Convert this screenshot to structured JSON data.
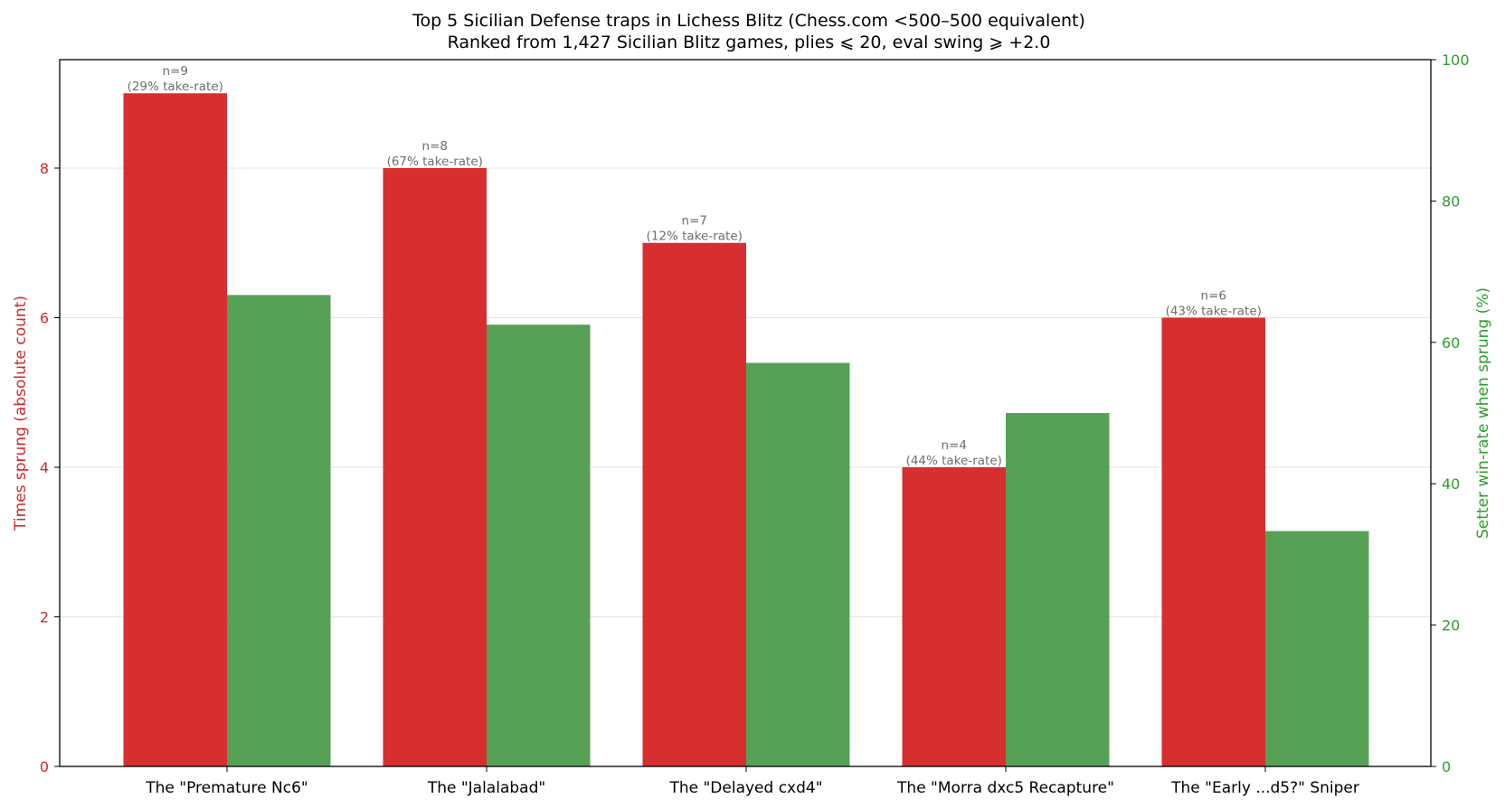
{
  "chart_data": {
    "type": "bar",
    "title": "Top 5 Sicilian Defense traps in Lichess Blitz (Chess.com <500–500 equivalent)",
    "subtitle": "Ranked from 1,427 Sicilian Blitz games, plies ⩽ 20, eval swing ⩾ +2.0",
    "categories": [
      "The \"Premature Nc6\"",
      "The \"Jalalabad\"",
      "The \"Delayed cxd4\"",
      "The \"Morra dxc5 Recapture\"",
      "The \"Early ...d5?\" Sniper"
    ],
    "series": [
      {
        "values": [
          9,
          8,
          7,
          4,
          6
        ],
        "axis": "left",
        "color": "#d62728"
      },
      {
        "values": [
          66.7,
          62.5,
          57.1,
          50.0,
          33.3
        ],
        "axis": "right",
        "color": "#4a9a4a"
      }
    ],
    "annotations": [
      {
        "line1": "n=9",
        "line2": "(29% take-rate)"
      },
      {
        "line1": "n=8",
        "line2": "(67% take-rate)"
      },
      {
        "line1": "n=7",
        "line2": "(12% take-rate)"
      },
      {
        "line1": "n=4",
        "line2": "(44% take-rate)"
      },
      {
        "line1": "n=6",
        "line2": "(43% take-rate)"
      }
    ],
    "ylabel": "Times sprung (absolute count)",
    "ylabel_right": "Setter win-rate when sprung (%)",
    "ylim": [
      0,
      9.45
    ],
    "ylim_right": [
      0,
      100
    ],
    "yticks": [
      0,
      2,
      4,
      6,
      8
    ],
    "yticks_right": [
      0,
      20,
      40,
      60,
      80,
      100
    ],
    "grid": true,
    "legend": "none"
  }
}
